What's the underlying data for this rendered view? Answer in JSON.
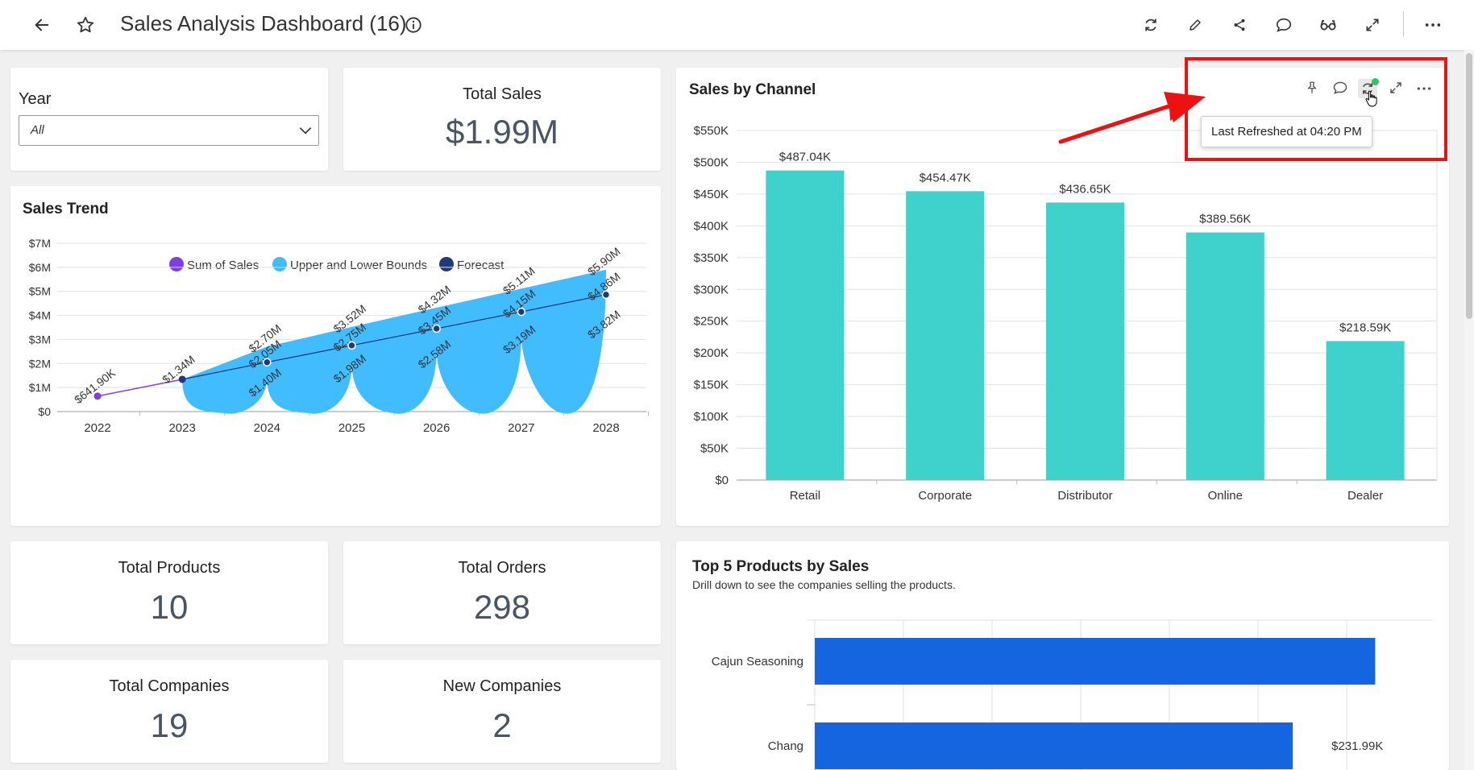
{
  "header": {
    "title": "Sales Analysis Dashboard (16)",
    "icons": [
      "back-arrow-icon",
      "star-icon",
      "info-icon",
      "refresh-icon",
      "edit-icon",
      "share-icon",
      "comment-icon",
      "glasses-icon",
      "expand-icon",
      "more-icon"
    ]
  },
  "filter": {
    "label": "Year",
    "value": "All"
  },
  "kpis": {
    "total_sales": {
      "title": "Total Sales",
      "value": "$1.99M"
    },
    "total_products": {
      "title": "Total Products",
      "value": "10"
    },
    "total_orders": {
      "title": "Total Orders",
      "value": "298"
    },
    "total_companies": {
      "title": "Total Companies",
      "value": "19"
    },
    "new_companies": {
      "title": "New Companies",
      "value": "2"
    }
  },
  "sales_trend": {
    "title": "Sales Trend",
    "legend": [
      "Sum of Sales",
      "Upper and Lower Bounds",
      "Forecast"
    ]
  },
  "sales_by_channel": {
    "title": "Sales by Channel",
    "tooltip": "Last Refreshed at 04:20 PM"
  },
  "top_products": {
    "title": "Top 5 Products by Sales",
    "subtitle": "Drill down to see the companies selling the products."
  },
  "colors": {
    "accent_purple": "#7b3fe4",
    "bounds_blue": "#40bcff",
    "forecast_navy": "#1f3a7a",
    "teal": "#3fd1cb",
    "bar_blue": "#1565e0",
    "highlight_red": "#ee1111"
  },
  "chart_data": [
    {
      "type": "line",
      "title": "Sales Trend",
      "x": [
        "2022",
        "2023",
        "2024",
        "2025",
        "2026",
        "2027",
        "2028"
      ],
      "yticks": [
        "$0",
        "$1M",
        "$2M",
        "$3M",
        "$4M",
        "$5M",
        "$6M",
        "$7M"
      ],
      "ylim": [
        0,
        7
      ],
      "series": [
        {
          "name": "Sum of Sales",
          "x": [
            "2022",
            "2023"
          ],
          "values": [
            0.6419,
            1.34
          ],
          "labels": [
            "$641.90K",
            "$1.34M"
          ]
        },
        {
          "name": "Forecast",
          "x": [
            "2023",
            "2024",
            "2025",
            "2026",
            "2027",
            "2028"
          ],
          "values": [
            1.34,
            2.05,
            2.75,
            3.45,
            4.15,
            4.86
          ],
          "labels": [
            "",
            "$2.05M",
            "$2.75M",
            "$3.45M",
            "$4.15M",
            "$4.86M"
          ]
        },
        {
          "name": "Upper Bound",
          "x": [
            "2024",
            "2025",
            "2026",
            "2027",
            "2028"
          ],
          "values": [
            2.7,
            3.52,
            4.32,
            5.11,
            5.9
          ],
          "labels": [
            "$2.70M",
            "$3.52M",
            "$4.32M",
            "$5.11M",
            "$5.90M"
          ]
        },
        {
          "name": "Lower Bound",
          "x": [
            "2024",
            "2025",
            "2026",
            "2027",
            "2028"
          ],
          "values": [
            1.4,
            1.98,
            2.58,
            3.19,
            3.82
          ],
          "labels": [
            "$1.40M",
            "$1.98M",
            "$2.58M",
            "$3.19M",
            "$3.82M"
          ]
        }
      ]
    },
    {
      "type": "bar",
      "title": "Sales by Channel",
      "categories": [
        "Retail",
        "Corporate",
        "Distributor",
        "Online",
        "Dealer"
      ],
      "values": [
        487.04,
        454.47,
        436.65,
        389.56,
        218.59
      ],
      "labels": [
        "$487.04K",
        "$454.47K",
        "$436.65K",
        "$389.56K",
        "$218.59K"
      ],
      "yticks": [
        "$0",
        "$50K",
        "$100K",
        "$150K",
        "$200K",
        "$250K",
        "$300K",
        "$350K",
        "$400K",
        "$450K",
        "$500K",
        "$550K"
      ],
      "ylim": [
        0,
        550
      ]
    },
    {
      "type": "bar",
      "orientation": "horizontal",
      "title": "Top 5 Products by Sales",
      "categories": [
        "Cajun Seasoning",
        "Chang"
      ],
      "values": [
        272,
        231.99
      ],
      "labels": [
        "",
        "$231.99K"
      ]
    }
  ]
}
